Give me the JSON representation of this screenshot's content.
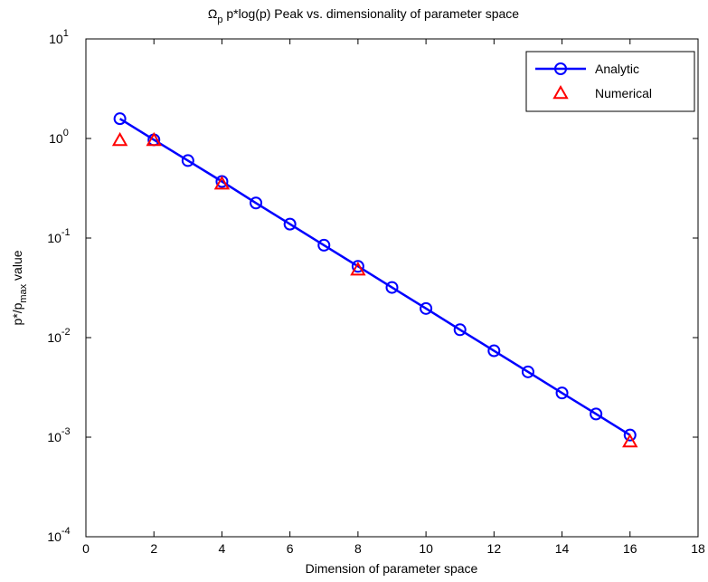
{
  "chart_data": {
    "type": "line",
    "title": {
      "symbol": "Ω",
      "sub": "p",
      "rest": " p*log(p) Peak vs. dimensionality of parameter space"
    },
    "x_label": "Dimension of parameter space",
    "y_label": {
      "base": "p*/p",
      "sub": "max",
      "rest": " value"
    },
    "log_y": true,
    "xlim": [
      0,
      18
    ],
    "xticks": [
      0,
      2,
      4,
      6,
      8,
      10,
      12,
      14,
      16,
      18
    ],
    "ylim": [
      0.0001,
      10
    ],
    "yticks": [
      {
        "value": 0.0001,
        "label": "10",
        "exponent": "-4"
      },
      {
        "value": 0.001,
        "label": "10",
        "exponent": "-3"
      },
      {
        "value": 0.01,
        "label": "10",
        "exponent": "-2"
      },
      {
        "value": 0.1,
        "label": "10",
        "exponent": "-1"
      },
      {
        "value": 1,
        "label": "10",
        "exponent": "0"
      },
      {
        "value": 10,
        "label": "10",
        "exponent": "1"
      }
    ],
    "legend": "top-right",
    "series": [
      {
        "name": "Analytic",
        "color": "#0000ff",
        "marker": "circle",
        "line": true,
        "x": [
          1,
          2,
          3,
          4,
          5,
          6,
          7,
          8,
          9,
          10,
          11,
          12,
          13,
          14,
          15,
          16
        ],
        "values": [
          1.58,
          0.97,
          0.6,
          0.37,
          0.225,
          0.138,
          0.0847,
          0.052,
          0.0319,
          0.0196,
          0.012,
          0.00738,
          0.00453,
          0.00278,
          0.00171,
          0.00105
        ]
      },
      {
        "name": "Numerical",
        "color": "#ff0000",
        "marker": "triangle",
        "line": false,
        "x": [
          1,
          2,
          4,
          8,
          16
        ],
        "values": [
          0.96,
          0.96,
          0.35,
          0.048,
          0.0009
        ]
      }
    ]
  }
}
